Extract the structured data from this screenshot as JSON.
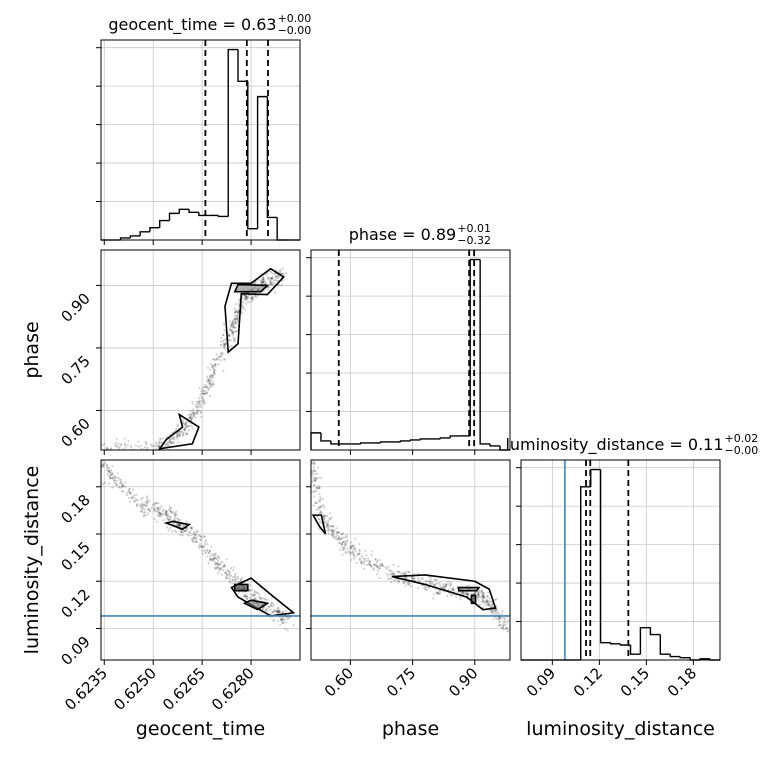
{
  "chart_data": {
    "type": "corner",
    "parameters": [
      "geocent_time",
      "phase",
      "luminosity_distance"
    ],
    "truth": {
      "luminosity_distance": 0.098
    },
    "truth_color": "#4682b4",
    "titles": [
      {
        "param": "geocent_time",
        "text": "geocent_time = 0.63",
        "sup": "+0.00",
        "sub": "−0.00"
      },
      {
        "param": "phase",
        "text": "phase = 0.89",
        "sup": "+0.01",
        "sub": "−0.32"
      },
      {
        "param": "luminosity_distance",
        "text": "luminosity_distance = 0.11",
        "sup": "+0.02",
        "sub": "−0.00"
      }
    ],
    "axes": {
      "geocent_time": {
        "range": [
          0.6234,
          0.6295
        ],
        "ticks": [
          0.6235,
          0.625,
          0.6265,
          0.628
        ],
        "tick_labels": [
          "0.6235",
          "0.6250",
          "0.6265",
          "0.6280"
        ]
      },
      "phase": {
        "range": [
          0.505,
          0.985
        ],
        "ticks": [
          0.6,
          0.75,
          0.9
        ],
        "tick_labels": [
          "0.60",
          "0.75",
          "0.90"
        ]
      },
      "luminosity_distance": {
        "range": [
          0.07,
          0.197
        ],
        "ticks": [
          0.09,
          0.12,
          0.15,
          0.18
        ],
        "tick_labels": [
          "0.09",
          "0.12",
          "0.15",
          "0.18"
        ]
      }
    },
    "hist1d": {
      "geocent_time": {
        "edges": [
          0.6234,
          0.6237,
          0.624,
          0.6243,
          0.6246,
          0.6249,
          0.6252,
          0.6255,
          0.6258,
          0.6261,
          0.6264,
          0.6267,
          0.627,
          0.6273,
          0.6276,
          0.6279,
          0.6282,
          0.6285,
          0.6288,
          0.6291,
          0.6295
        ],
        "counts": [
          0,
          0,
          2,
          4,
          8,
          12,
          19,
          26,
          30,
          27,
          24,
          24,
          23,
          186,
          155,
          11,
          140,
          22,
          0,
          0
        ],
        "quantiles": [
          0.6266,
          0.62787,
          0.62852
        ]
      },
      "phase": {
        "edges": [
          0.505,
          0.529,
          0.553,
          0.577,
          0.601,
          0.625,
          0.649,
          0.673,
          0.697,
          0.721,
          0.745,
          0.769,
          0.793,
          0.817,
          0.841,
          0.865,
          0.889,
          0.913,
          0.937,
          0.961,
          0.985
        ],
        "counts": [
          17,
          9,
          6,
          6,
          6,
          7,
          7,
          8,
          8,
          9,
          10,
          11,
          11,
          12,
          14,
          14,
          189,
          6,
          4,
          0
        ],
        "quantiles": [
          0.572,
          0.8865,
          0.8985
        ]
      },
      "luminosity_distance": {
        "edges": [
          0.07,
          0.0764,
          0.0827,
          0.0891,
          0.0954,
          0.1018,
          0.1081,
          0.1145,
          0.1208,
          0.1272,
          0.1335,
          0.1399,
          0.1462,
          0.1526,
          0.1589,
          0.1653,
          0.1716,
          0.178,
          0.1843,
          0.1907,
          0.197
        ],
        "counts": [
          0,
          0,
          0,
          0,
          0,
          0,
          150,
          165,
          15,
          14,
          13,
          5,
          28,
          22,
          5,
          3,
          2,
          0,
          1,
          0
        ],
        "quantiles": [
          0.1115,
          0.1142,
          0.1385
        ]
      }
    }
  }
}
